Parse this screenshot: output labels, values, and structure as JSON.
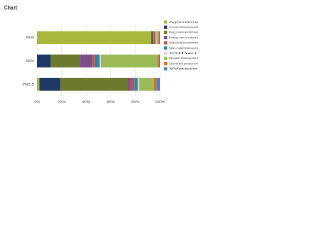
{
  "chart_data": {
    "type": "stacked_bar_horizontal",
    "title": "Chart",
    "categories": [
      "NH3",
      "NOx",
      "PM2.5"
    ],
    "series": [
      {
        "name": "Agriculture",
        "color": "#a9b83c",
        "values": [
          93,
          0,
          2
        ]
      },
      {
        "name": "Commercial, institutional and households",
        "color": "#1f3864",
        "values": [
          1,
          11,
          17
        ]
      },
      {
        "name": "Energy production and distribution",
        "color": "#6b7a2c",
        "values": [
          0.5,
          24,
          55
        ]
      },
      {
        "name": "Energy use in industry",
        "color": "#7b4f8a",
        "values": [
          0.5,
          10,
          2
        ]
      },
      {
        "name": "Industrial processes",
        "color": "#c0504d",
        "values": [
          1,
          2,
          3
        ]
      },
      {
        "name": "Non-road transport",
        "color": "#31859c",
        "values": [
          0.5,
          4,
          3
        ]
      },
      {
        "name": "Other",
        "color": "#d9d9d9",
        "values": [
          0.5,
          1,
          1
        ]
      },
      {
        "name": "Road transport",
        "color": "#9bbb59",
        "values": [
          1.5,
          46,
          12
        ]
      },
      {
        "name": "Solvent and product use",
        "color": "#e46c0a",
        "values": [
          0.5,
          1,
          2
        ]
      },
      {
        "name": "Waste",
        "color": "#4f81bd",
        "values": [
          1,
          1,
          3
        ]
      }
    ],
    "xlim": [
      0,
      100
    ],
    "xticks": [
      {
        "value": 0,
        "label": "0%"
      },
      {
        "value": 20,
        "label": "20%"
      },
      {
        "value": 40,
        "label": "40%"
      },
      {
        "value": 60,
        "label": "60%"
      },
      {
        "value": 80,
        "label": "80%"
      },
      {
        "value": 100,
        "label": "100%"
      }
    ],
    "grid": true
  }
}
